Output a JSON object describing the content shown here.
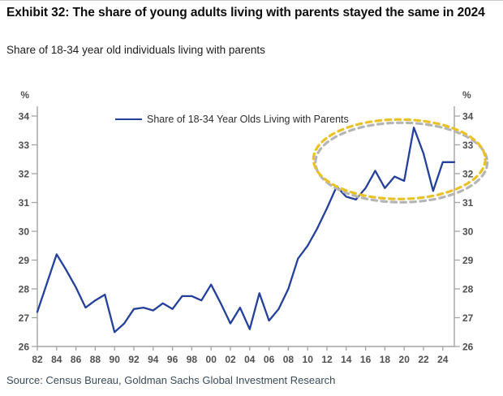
{
  "header": {
    "title": "Exhibit 32: The share of young adults living with parents stayed the same in 2024",
    "subtitle": "Share of 18-34 year old individuals living with parents"
  },
  "legend": {
    "label": "Share of 18-34 Year Olds Living with Parents"
  },
  "footer": {
    "source": "Source: Census Bureau, Goldman Sachs Global Investment Research"
  },
  "colors": {
    "line": "#24409a",
    "axis": "#a3a3a3",
    "tick_label": "#4f4f4f",
    "highlight_yellow": "#e9c228",
    "highlight_shadow": "#b5b5b5",
    "title_text": "#0d0d0d",
    "source_text": "#3a4b57"
  },
  "chart_data": {
    "type": "line",
    "title": "Exhibit 32: The share of young adults living with parents stayed the same in 2024",
    "subtitle": "Share of 18-34 year old individuals living with parents",
    "y_unit_left": "%",
    "y_unit_right": "%",
    "ylim": [
      26,
      34
    ],
    "y_ticks": [
      26,
      27,
      28,
      29,
      30,
      31,
      32,
      33,
      34
    ],
    "x_tick_labels": [
      "82",
      "84",
      "86",
      "88",
      "90",
      "92",
      "94",
      "96",
      "98",
      "00",
      "02",
      "04",
      "06",
      "08",
      "10",
      "12",
      "14",
      "16",
      "18",
      "20",
      "22",
      "24"
    ],
    "x_tick_years": [
      1982,
      1984,
      1986,
      1988,
      1990,
      1992,
      1994,
      1996,
      1998,
      2000,
      2002,
      2004,
      2006,
      2008,
      2010,
      2012,
      2014,
      2016,
      2018,
      2020,
      2022,
      2024
    ],
    "grid": false,
    "dual_y_axis": true,
    "legend_position": "top-center",
    "line_extends_flat_to_plot_edge": true,
    "x": [
      1982,
      1983,
      1984,
      1985,
      1986,
      1987,
      1988,
      1989,
      1990,
      1991,
      1992,
      1993,
      1994,
      1995,
      1996,
      1997,
      1998,
      1999,
      2000,
      2001,
      2002,
      2003,
      2004,
      2005,
      2006,
      2007,
      2008,
      2009,
      2010,
      2011,
      2012,
      2013,
      2014,
      2015,
      2016,
      2017,
      2018,
      2019,
      2020,
      2021,
      2022,
      2023,
      2024
    ],
    "series": [
      {
        "name": "Share of 18-34 Year Olds Living with Parents",
        "values": [
          27.2,
          28.2,
          29.2,
          28.65,
          28.05,
          27.35,
          27.6,
          27.8,
          26.5,
          26.8,
          27.3,
          27.35,
          27.25,
          27.5,
          27.3,
          27.75,
          27.75,
          27.6,
          28.15,
          27.5,
          26.8,
          27.35,
          26.6,
          27.85,
          26.9,
          27.3,
          28.0,
          29.05,
          29.5,
          30.1,
          30.8,
          31.55,
          31.2,
          31.1,
          31.5,
          32.1,
          31.5,
          31.9,
          31.75,
          33.6,
          32.7,
          31.4,
          32.4
        ]
      }
    ],
    "annotations": [
      {
        "type": "ellipse_highlight",
        "center_x_year": 2019.5,
        "center_y_value": 32.5,
        "radius_x_years": 8.9,
        "radius_y_values": 1.38,
        "style": "dashed",
        "color": "#e9c228",
        "shadow_color": "#b5b5b5"
      }
    ]
  }
}
